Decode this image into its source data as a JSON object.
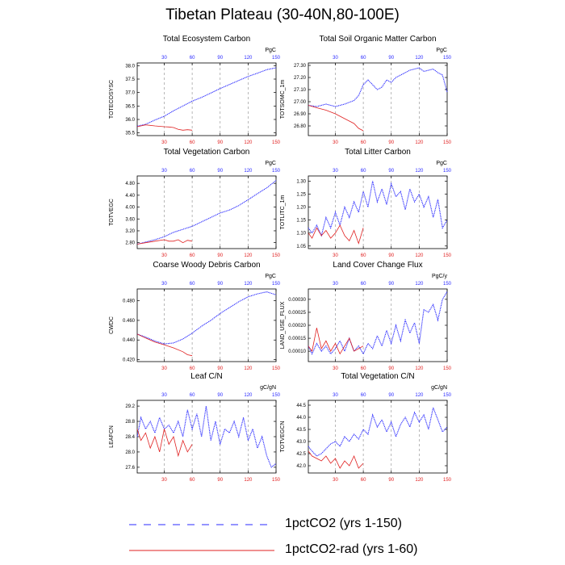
{
  "title": "Tibetan Plateau (30-40N,80-100E)",
  "colors": {
    "run1": "#2a2aff",
    "run2": "#e02020",
    "axis": "#000000",
    "grid": "#9a9a9a"
  },
  "legend": [
    {
      "label": "1pctCO2 (yrs 1-150)",
      "color": "#2a2aff",
      "style": "dashed"
    },
    {
      "label": "1pctCO2-rad (yrs 1-60)",
      "color": "#e02020",
      "style": "solid"
    }
  ],
  "chart_data": [
    {
      "type": "line",
      "title": "Total Ecosystem Carbon",
      "ylabel": "TOTECOSYSC",
      "units": "PgC",
      "xlim": [
        1,
        150
      ],
      "ylim": [
        35.4,
        38.1
      ],
      "yticks": [
        35.5,
        36.0,
        36.5,
        37.0,
        37.5,
        38.0
      ],
      "ytick_labels": [
        "35.5",
        "36.0",
        "36.5",
        "37.0",
        "37.5",
        "38.0"
      ],
      "xticks": [
        30,
        60,
        90,
        120,
        150
      ],
      "series": [
        {
          "name": "1pctCO2 (yrs 1-150)",
          "x": [
            1,
            10,
            20,
            30,
            40,
            50,
            60,
            70,
            80,
            90,
            100,
            110,
            120,
            130,
            140,
            150
          ],
          "y": [
            35.75,
            35.82,
            35.98,
            36.12,
            36.32,
            36.5,
            36.68,
            36.82,
            36.98,
            37.15,
            37.3,
            37.45,
            37.6,
            37.72,
            37.85,
            37.92
          ]
        },
        {
          "name": "1pctCO2-rad (yrs 1-60)",
          "x": [
            1,
            10,
            20,
            30,
            35,
            40,
            45,
            50,
            55,
            60
          ],
          "y": [
            35.73,
            35.8,
            35.76,
            35.73,
            35.72,
            35.7,
            35.63,
            35.6,
            35.62,
            35.6
          ]
        }
      ]
    },
    {
      "type": "line",
      "title": "Total Soil Organic Matter Carbon",
      "ylabel": "TOTSOMC_1m",
      "units": "PgC",
      "xlim": [
        1,
        150
      ],
      "ylim": [
        26.72,
        27.32
      ],
      "yticks": [
        26.8,
        26.9,
        27.0,
        27.1,
        27.2,
        27.3
      ],
      "ytick_labels": [
        "26.80",
        "26.90",
        "27.00",
        "27.10",
        "27.20",
        "27.30"
      ],
      "xticks": [
        30,
        60,
        90,
        120,
        150
      ],
      "series": [
        {
          "name": "1pctCO2 (yrs 1-150)",
          "x": [
            1,
            10,
            20,
            30,
            40,
            50,
            55,
            60,
            65,
            70,
            75,
            80,
            85,
            90,
            95,
            100,
            105,
            110,
            115,
            120,
            125,
            130,
            135,
            140,
            145,
            150
          ],
          "y": [
            26.97,
            26.96,
            26.98,
            26.96,
            26.98,
            27.01,
            27.05,
            27.14,
            27.18,
            27.14,
            27.1,
            27.12,
            27.18,
            27.16,
            27.2,
            27.22,
            27.24,
            27.26,
            27.27,
            27.28,
            27.25,
            27.26,
            27.27,
            27.24,
            27.22,
            27.08
          ]
        },
        {
          "name": "1pctCO2-rad (yrs 1-60)",
          "x": [
            1,
            10,
            20,
            30,
            35,
            40,
            45,
            50,
            55,
            60
          ],
          "y": [
            26.97,
            26.95,
            26.93,
            26.9,
            26.88,
            26.86,
            26.84,
            26.82,
            26.78,
            26.76
          ]
        }
      ]
    },
    {
      "type": "line",
      "title": "Total Vegetation Carbon",
      "ylabel": "TOTVEGC",
      "units": "PgC",
      "xlim": [
        1,
        150
      ],
      "ylim": [
        2.6,
        5.05
      ],
      "yticks": [
        2.8,
        3.2,
        3.6,
        4.0,
        4.4,
        4.8
      ],
      "ytick_labels": [
        "2.80",
        "3.20",
        "3.60",
        "4.00",
        "4.40",
        "4.80"
      ],
      "xticks": [
        30,
        60,
        90,
        120,
        150
      ],
      "series": [
        {
          "name": "1pctCO2 (yrs 1-150)",
          "x": [
            1,
            10,
            20,
            30,
            40,
            50,
            60,
            70,
            80,
            90,
            100,
            110,
            120,
            130,
            140,
            150
          ],
          "y": [
            2.75,
            2.82,
            2.9,
            3.0,
            3.15,
            3.25,
            3.35,
            3.5,
            3.65,
            3.8,
            3.9,
            4.05,
            4.25,
            4.45,
            4.65,
            4.9
          ]
        },
        {
          "name": "1pctCO2-rad (yrs 1-60)",
          "x": [
            1,
            10,
            20,
            30,
            35,
            40,
            45,
            50,
            55,
            60
          ],
          "y": [
            2.75,
            2.8,
            2.85,
            2.9,
            2.85,
            2.85,
            2.9,
            2.8,
            2.88,
            2.85
          ]
        }
      ]
    },
    {
      "type": "line",
      "title": "Total Litter Carbon",
      "ylabel": "TOTLITC_1m",
      "units": "PgC",
      "xlim": [
        1,
        150
      ],
      "ylim": [
        1.04,
        1.32
      ],
      "yticks": [
        1.05,
        1.1,
        1.15,
        1.2,
        1.25,
        1.3
      ],
      "ytick_labels": [
        "1.05",
        "1.10",
        "1.15",
        "1.20",
        "1.25",
        "1.30"
      ],
      "xticks": [
        30,
        60,
        90,
        120,
        150
      ],
      "series": [
        {
          "name": "1pctCO2 (yrs 1-150)",
          "x": [
            1,
            5,
            10,
            15,
            20,
            25,
            30,
            35,
            40,
            45,
            50,
            55,
            60,
            65,
            70,
            75,
            80,
            85,
            90,
            95,
            100,
            105,
            110,
            115,
            120,
            125,
            130,
            135,
            140,
            145,
            150
          ],
          "y": [
            1.12,
            1.1,
            1.13,
            1.09,
            1.16,
            1.12,
            1.18,
            1.13,
            1.2,
            1.16,
            1.22,
            1.18,
            1.26,
            1.2,
            1.3,
            1.22,
            1.27,
            1.21,
            1.29,
            1.24,
            1.26,
            1.19,
            1.27,
            1.22,
            1.25,
            1.2,
            1.24,
            1.16,
            1.23,
            1.12,
            1.15
          ]
        },
        {
          "name": "1pctCO2-rad (yrs 1-60)",
          "x": [
            1,
            5,
            10,
            15,
            20,
            25,
            30,
            35,
            40,
            45,
            50,
            55,
            60
          ],
          "y": [
            1.1,
            1.08,
            1.12,
            1.09,
            1.11,
            1.08,
            1.1,
            1.13,
            1.09,
            1.07,
            1.11,
            1.06,
            1.12
          ]
        }
      ]
    },
    {
      "type": "line",
      "title": "Coarse Woody Debris Carbon",
      "ylabel": "CWDC",
      "units": "PgC",
      "xlim": [
        1,
        150
      ],
      "ylim": [
        0.418,
        0.492
      ],
      "yticks": [
        0.42,
        0.44,
        0.46,
        0.48
      ],
      "ytick_labels": [
        "0.420",
        "0.440",
        "0.460",
        "0.480"
      ],
      "xticks": [
        30,
        60,
        90,
        120,
        150
      ],
      "series": [
        {
          "name": "1pctCO2 (yrs 1-150)",
          "x": [
            1,
            10,
            20,
            30,
            40,
            50,
            60,
            70,
            80,
            90,
            100,
            110,
            120,
            130,
            140,
            150
          ],
          "y": [
            0.446,
            0.443,
            0.439,
            0.436,
            0.437,
            0.441,
            0.447,
            0.454,
            0.46,
            0.467,
            0.473,
            0.479,
            0.484,
            0.487,
            0.489,
            0.486
          ]
        },
        {
          "name": "1pctCO2-rad (yrs 1-60)",
          "x": [
            1,
            10,
            20,
            30,
            40,
            50,
            55,
            60
          ],
          "y": [
            0.446,
            0.442,
            0.438,
            0.435,
            0.432,
            0.428,
            0.425,
            0.424
          ]
        }
      ]
    },
    {
      "type": "line",
      "title": "Land Cover Change Flux",
      "ylabel": "LAND_USE_FLUX",
      "units": "PgC/y",
      "xlim": [
        1,
        150
      ],
      "ylim": [
        6e-05,
        0.00034
      ],
      "yticks": [
        0.0001,
        0.00015,
        0.0002,
        0.00025,
        0.0003
      ],
      "ytick_labels": [
        "0.00010",
        "0.00015",
        "0.00020",
        "0.00025",
        "0.00030"
      ],
      "xticks": [
        30,
        60,
        90,
        120,
        150
      ],
      "series": [
        {
          "name": "1pctCO2 (yrs 1-150)",
          "x": [
            1,
            5,
            10,
            15,
            20,
            25,
            30,
            35,
            40,
            45,
            50,
            55,
            60,
            65,
            70,
            75,
            80,
            85,
            90,
            95,
            100,
            105,
            110,
            115,
            120,
            125,
            130,
            135,
            140,
            145,
            150
          ],
          "y": [
            0.00012,
            9e-05,
            0.00013,
            0.0001,
            0.00012,
            9e-05,
            0.00011,
            0.00014,
            0.0001,
            0.00015,
            0.0001,
            0.00012,
            9e-05,
            0.00013,
            0.00011,
            0.00016,
            0.00012,
            0.00018,
            0.00013,
            0.0002,
            0.00014,
            0.00022,
            0.00017,
            0.00021,
            0.00013,
            0.00026,
            0.00025,
            0.00028,
            0.00022,
            0.0003,
            0.00033
          ]
        },
        {
          "name": "1pctCO2-rad (yrs 1-60)",
          "x": [
            1,
            5,
            10,
            15,
            20,
            25,
            30,
            35,
            40,
            45,
            50,
            55,
            60
          ],
          "y": [
            0.00012,
            0.0001,
            0.00019,
            0.00011,
            0.00014,
            0.0001,
            0.00013,
            9e-05,
            0.00012,
            0.00015,
            0.0001,
            0.00011,
            0.00012
          ]
        }
      ]
    },
    {
      "type": "line",
      "title": "Leaf C/N",
      "ylabel": "LEAFCN",
      "units": "gC/gN",
      "xlim": [
        1,
        150
      ],
      "ylim": [
        27.45,
        29.35
      ],
      "yticks": [
        27.6,
        28.0,
        28.4,
        28.8,
        29.2
      ],
      "ytick_labels": [
        "27.6",
        "28.0",
        "28.4",
        "28.8",
        "29.2"
      ],
      "xticks": [
        30,
        60,
        90,
        120,
        150
      ],
      "series": [
        {
          "name": "1pctCO2 (yrs 1-150)",
          "x": [
            1,
            5,
            10,
            15,
            20,
            25,
            30,
            35,
            40,
            45,
            50,
            55,
            60,
            65,
            70,
            75,
            80,
            85,
            90,
            95,
            100,
            105,
            110,
            115,
            120,
            125,
            130,
            135,
            140,
            145,
            150
          ],
          "y": [
            28.4,
            28.9,
            28.6,
            28.8,
            28.5,
            28.9,
            28.6,
            28.7,
            28.5,
            28.8,
            28.4,
            29.1,
            28.6,
            29.0,
            28.4,
            29.2,
            28.3,
            28.8,
            28.2,
            28.6,
            28.5,
            28.8,
            28.4,
            28.9,
            28.3,
            28.6,
            28.1,
            28.4,
            27.9,
            27.6,
            27.7
          ]
        },
        {
          "name": "1pctCO2-rad (yrs 1-60)",
          "x": [
            1,
            5,
            10,
            15,
            20,
            25,
            30,
            35,
            40,
            45,
            50,
            55,
            60
          ],
          "y": [
            28.6,
            28.3,
            28.5,
            28.1,
            28.4,
            28.0,
            28.6,
            28.2,
            28.4,
            27.9,
            28.3,
            28.0,
            28.2
          ]
        }
      ]
    },
    {
      "type": "line",
      "title": "Total Vegetation C/N",
      "ylabel": "TOTVEGCN",
      "units": "gC/gN",
      "xlim": [
        1,
        150
      ],
      "ylim": [
        41.7,
        44.7
      ],
      "yticks": [
        42.0,
        42.5,
        43.0,
        43.5,
        44.0,
        44.5
      ],
      "ytick_labels": [
        "42.0",
        "42.5",
        "43.0",
        "43.5",
        "44.0",
        "44.5"
      ],
      "xticks": [
        30,
        60,
        90,
        120,
        150
      ],
      "series": [
        {
          "name": "1pctCO2 (yrs 1-150)",
          "x": [
            1,
            5,
            10,
            15,
            20,
            25,
            30,
            35,
            40,
            45,
            50,
            55,
            60,
            65,
            70,
            75,
            80,
            85,
            90,
            95,
            100,
            105,
            110,
            115,
            120,
            125,
            130,
            135,
            140,
            145,
            150
          ],
          "y": [
            42.8,
            42.6,
            42.4,
            42.5,
            42.7,
            42.9,
            43.0,
            42.8,
            43.2,
            43.0,
            43.3,
            43.1,
            43.5,
            43.3,
            44.1,
            43.6,
            43.9,
            43.4,
            43.8,
            43.2,
            43.7,
            44.0,
            43.6,
            44.2,
            43.8,
            44.1,
            43.5,
            44.4,
            43.9,
            43.4,
            43.6
          ]
        },
        {
          "name": "1pctCO2-rad (yrs 1-60)",
          "x": [
            1,
            5,
            10,
            15,
            20,
            25,
            30,
            35,
            40,
            45,
            50,
            55,
            60
          ],
          "y": [
            42.6,
            42.4,
            42.3,
            42.2,
            42.4,
            42.1,
            42.3,
            41.9,
            42.2,
            42.0,
            42.4,
            41.9,
            42.1
          ]
        }
      ]
    }
  ]
}
